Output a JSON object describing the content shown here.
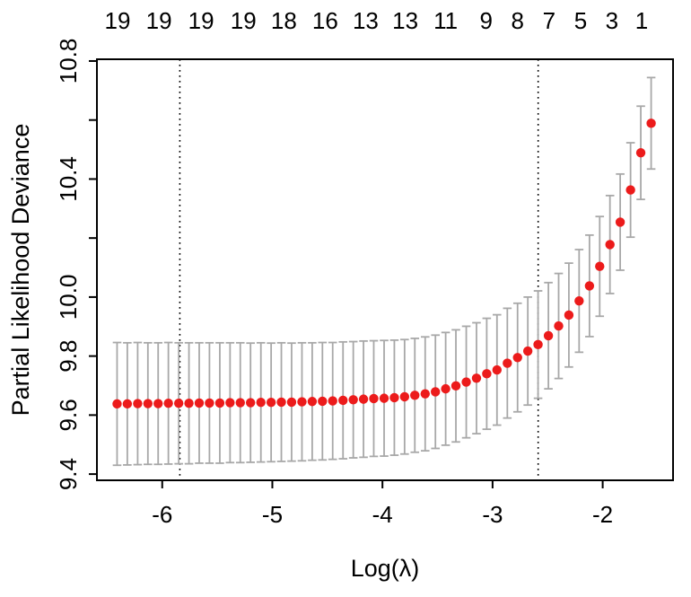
{
  "figure": {
    "background": "#ffffff"
  },
  "chart_data": {
    "type": "scatter",
    "title": "",
    "xlabel": "Log(λ)",
    "ylabel": "Partial Likelihood Deviance",
    "xlim": [
      -6.593,
      -1.361
    ],
    "ylim": [
      9.379,
      10.806
    ],
    "grid": false,
    "legend": false,
    "x_ticks": [
      -6,
      -5,
      -4,
      -3,
      -2
    ],
    "x_tick_labels": [
      "-6",
      "-5",
      "-4",
      "-3",
      "-2"
    ],
    "y_ticks": [
      9.4,
      9.6,
      9.8,
      10.0,
      10.2,
      10.4,
      10.6,
      10.8
    ],
    "y_tick_labels": [
      "9.4",
      "9.6",
      "9.8",
      "10.0",
      "",
      "10.4",
      "",
      "10.8"
    ],
    "top_axis": {
      "at": [
        -6.406,
        -6.03,
        -5.647,
        -5.263,
        -4.895,
        -4.52,
        -4.153,
        -3.793,
        -3.426,
        -3.058,
        -2.773,
        -2.487,
        -2.201,
        -1.916,
        -1.646
      ],
      "labels": [
        "19",
        "19",
        "19",
        "19",
        "18",
        "16",
        "13",
        "13",
        "11",
        "9",
        "8",
        "7",
        "5",
        "3",
        "1"
      ]
    },
    "vlines": {
      "lambda_min": -5.84,
      "lambda_1se": -2.586,
      "style": "dotted"
    },
    "series": [
      {
        "name": "cv-partial-likelihood-deviance",
        "x": [
          -6.41,
          -6.317,
          -6.223,
          -6.13,
          -6.037,
          -5.944,
          -5.85,
          -5.757,
          -5.664,
          -5.571,
          -5.477,
          -5.384,
          -5.291,
          -5.198,
          -5.104,
          -5.011,
          -4.918,
          -4.825,
          -4.731,
          -4.638,
          -4.545,
          -4.452,
          -4.358,
          -4.265,
          -4.172,
          -4.079,
          -3.985,
          -3.892,
          -3.799,
          -3.706,
          -3.612,
          -3.519,
          -3.426,
          -3.333,
          -3.239,
          -3.146,
          -3.053,
          -2.96,
          -2.866,
          -2.773,
          -2.68,
          -2.587,
          -2.493,
          -2.4,
          -2.307,
          -2.214,
          -2.12,
          -2.027,
          -1.934,
          -1.841,
          -1.747,
          -1.654,
          -1.56
        ],
        "y": [
          9.638,
          9.638,
          9.639,
          9.639,
          9.639,
          9.64,
          9.64,
          9.64,
          9.641,
          9.641,
          9.641,
          9.642,
          9.642,
          9.642,
          9.643,
          9.643,
          9.644,
          9.644,
          9.645,
          9.646,
          9.647,
          9.648,
          9.65,
          9.652,
          9.654,
          9.656,
          9.657,
          9.659,
          9.662,
          9.667,
          9.672,
          9.679,
          9.689,
          9.699,
          9.712,
          9.725,
          9.74,
          9.753,
          9.776,
          9.795,
          9.817,
          9.839,
          9.869,
          9.902,
          9.939,
          9.987,
          10.038,
          10.104,
          10.178,
          10.254,
          10.363,
          10.489,
          10.589
        ],
        "se": [
          0.208,
          0.207,
          0.207,
          0.206,
          0.206,
          0.206,
          0.205,
          0.205,
          0.204,
          0.204,
          0.204,
          0.203,
          0.203,
          0.202,
          0.202,
          0.201,
          0.201,
          0.2,
          0.2,
          0.199,
          0.199,
          0.198,
          0.198,
          0.197,
          0.197,
          0.196,
          0.196,
          0.195,
          0.194,
          0.193,
          0.193,
          0.192,
          0.191,
          0.19,
          0.189,
          0.188,
          0.188,
          0.187,
          0.186,
          0.184,
          0.183,
          0.182,
          0.18,
          0.178,
          0.176,
          0.174,
          0.172,
          0.169,
          0.166,
          0.163,
          0.16,
          0.158,
          0.155
        ]
      }
    ],
    "colors": {
      "point": "#ec1b1b",
      "error_bar": "#a8a8a8",
      "vline": "#000000",
      "axis": "#000000"
    }
  }
}
